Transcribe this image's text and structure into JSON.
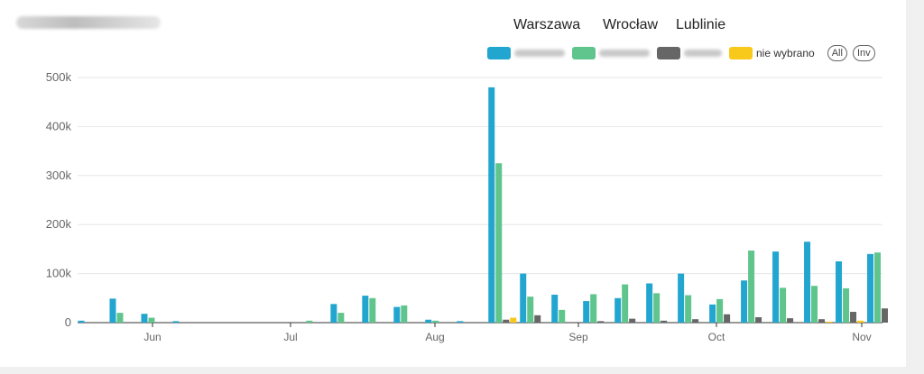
{
  "header": {
    "cities": [
      "Warszawa",
      "Wrocław",
      "Lublinie"
    ]
  },
  "legend": {
    "items": [
      {
        "label": "",
        "color": "#22a6cf"
      },
      {
        "label": "",
        "color": "#5fc58c"
      },
      {
        "label": "",
        "color": "#666666"
      },
      {
        "label": "nie wybrano",
        "color": "#f8c81a"
      }
    ],
    "all_label": "All",
    "inv_label": "Inv"
  },
  "chart_data": {
    "type": "bar",
    "ylim": [
      0,
      500000
    ],
    "y_ticks": [
      0,
      100000,
      200000,
      300000,
      400000,
      500000
    ],
    "y_tick_labels": [
      "0",
      "100k",
      "200k",
      "300k",
      "400k",
      "500k"
    ],
    "x_tick_labels": [
      "Jun",
      "Jul",
      "Aug",
      "Sep",
      "Oct",
      "Nov"
    ],
    "xlabel": "",
    "ylabel": "",
    "series_colors": [
      "#22a6cf",
      "#5fc58c",
      "#666666",
      "#f8c81a"
    ],
    "groups": [
      [
        4000,
        0,
        0,
        0
      ],
      [
        49000,
        20000,
        0,
        0
      ],
      [
        18000,
        10000,
        0,
        0
      ],
      [
        3000,
        0,
        0,
        0
      ],
      [
        0,
        0,
        0,
        0
      ],
      [
        0,
        0,
        0,
        0
      ],
      [
        0,
        0,
        0,
        0
      ],
      [
        0,
        4000,
        0,
        0
      ],
      [
        38000,
        20000,
        0,
        0
      ],
      [
        55000,
        50000,
        0,
        0
      ],
      [
        32000,
        35000,
        0,
        0
      ],
      [
        6000,
        4000,
        0,
        0
      ],
      [
        3000,
        0,
        0,
        0
      ],
      [
        480000,
        325000,
        6000,
        10000
      ],
      [
        100000,
        53000,
        15000,
        0
      ],
      [
        57000,
        26000,
        0,
        0
      ],
      [
        44000,
        58000,
        3000,
        0
      ],
      [
        50000,
        78000,
        8000,
        0
      ],
      [
        80000,
        60000,
        4000,
        0
      ],
      [
        100000,
        56000,
        7000,
        0
      ],
      [
        37000,
        48000,
        17000,
        0
      ],
      [
        86000,
        147000,
        11000,
        0
      ],
      [
        145000,
        71000,
        9000,
        0
      ],
      [
        165000,
        75000,
        7000,
        2000
      ],
      [
        125000,
        70000,
        22000,
        4000
      ],
      [
        140000,
        143000,
        29000,
        0
      ]
    ]
  }
}
